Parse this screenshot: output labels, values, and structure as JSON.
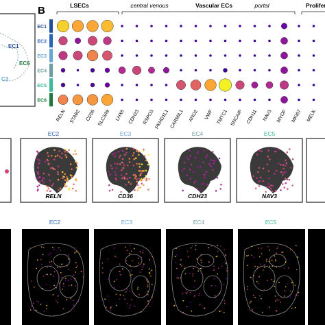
{
  "panel_letter": "B",
  "clusters": [
    {
      "name": "EC1",
      "color": "#1f4e9a"
    },
    {
      "name": "EC2",
      "color": "#2a66b8"
    },
    {
      "name": "EC3",
      "color": "#6aa5d6"
    },
    {
      "name": "EC4",
      "color": "#6f9ea0"
    },
    {
      "name": "EC5",
      "color": "#3fb89b"
    },
    {
      "name": "EC6",
      "color": "#1d7a3e"
    }
  ],
  "umap_left_labels": [
    "EC1",
    "EC6",
    "C3"
  ],
  "groups": [
    {
      "label": "LSECs",
      "bold": true
    },
    {
      "label": "central venous",
      "bold": false
    },
    {
      "label": "Vascular ECs",
      "bold": true
    },
    {
      "label": "portal",
      "bold": false
    },
    {
      "label": "Prolifera",
      "bold": true
    }
  ],
  "genes": [
    "RELN",
    "STAB2",
    "CD36",
    "SLC3A9",
    "LHX6",
    "CDH23",
    "RSPO3",
    "PKHD1L1",
    "CARMIL1",
    "ANO2",
    "VWF",
    "TMTC1",
    "SNCAIP",
    "CDH11",
    "NAV3",
    "MYOF",
    "MKI67",
    "MELK"
  ],
  "chart_data": {
    "type": "dotplot",
    "rows": [
      "EC1",
      "EC2",
      "EC3",
      "EC4",
      "EC5",
      "EC6"
    ],
    "columns": [
      "RELN",
      "STAB2",
      "CD36",
      "SLC3A9",
      "LHX6",
      "CDH23",
      "RSPO3",
      "PKHD1L1",
      "CARMIL1",
      "ANO2",
      "VWF",
      "TMTC1",
      "SNCAIP",
      "CDH11",
      "NAV3",
      "MYOF",
      "MKI67",
      "MELK"
    ],
    "size_pct": [
      [
        85,
        80,
        80,
        85,
        10,
        10,
        10,
        10,
        10,
        10,
        10,
        10,
        10,
        10,
        10,
        30,
        10,
        10
      ],
      [
        55,
        30,
        60,
        50,
        10,
        10,
        10,
        10,
        10,
        10,
        10,
        10,
        10,
        10,
        10,
        40,
        10,
        10
      ],
      [
        55,
        60,
        75,
        65,
        10,
        10,
        10,
        10,
        10,
        10,
        10,
        10,
        10,
        10,
        10,
        40,
        10,
        10
      ],
      [
        15,
        10,
        15,
        20,
        40,
        55,
        35,
        30,
        10,
        10,
        10,
        15,
        10,
        10,
        10,
        40,
        10,
        10
      ],
      [
        15,
        10,
        15,
        20,
        10,
        10,
        10,
        10,
        60,
        70,
        80,
        90,
        55,
        35,
        40,
        55,
        10,
        10
      ],
      [
        65,
        70,
        75,
        80,
        10,
        10,
        10,
        10,
        10,
        10,
        10,
        10,
        10,
        10,
        10,
        40,
        10,
        10
      ]
    ],
    "expr": [
      [
        0.9,
        0.8,
        0.8,
        0.85,
        0.1,
        0.1,
        0.1,
        0.1,
        0.1,
        0.1,
        0.1,
        0.1,
        0.1,
        0.1,
        0.1,
        0.2,
        0.1,
        0.1
      ],
      [
        0.5,
        0.3,
        0.5,
        0.45,
        0.1,
        0.1,
        0.1,
        0.1,
        0.1,
        0.1,
        0.1,
        0.1,
        0.1,
        0.1,
        0.1,
        0.3,
        0.1,
        0.1
      ],
      [
        0.45,
        0.5,
        0.7,
        0.55,
        0.1,
        0.1,
        0.1,
        0.1,
        0.1,
        0.1,
        0.1,
        0.1,
        0.1,
        0.1,
        0.1,
        0.3,
        0.1,
        0.1
      ],
      [
        0.15,
        0.1,
        0.15,
        0.2,
        0.4,
        0.5,
        0.4,
        0.3,
        0.1,
        0.1,
        0.1,
        0.1,
        0.1,
        0.1,
        0.1,
        0.3,
        0.1,
        0.1
      ],
      [
        0.15,
        0.1,
        0.15,
        0.2,
        0.1,
        0.1,
        0.1,
        0.1,
        0.55,
        0.6,
        0.8,
        0.98,
        0.5,
        0.35,
        0.4,
        0.45,
        0.1,
        0.1
      ],
      [
        0.7,
        0.75,
        0.75,
        0.8,
        0.1,
        0.1,
        0.1,
        0.1,
        0.1,
        0.1,
        0.1,
        0.1,
        0.1,
        0.1,
        0.1,
        0.3,
        0.1,
        0.1
      ]
    ]
  },
  "umap_panels": [
    {
      "title": "EC2",
      "title_color": "#2a66b8",
      "gene": "RELN",
      "level": 0.75
    },
    {
      "title": "EC3",
      "title_color": "#6aa5d6",
      "gene": "CD36",
      "level": 0.7
    },
    {
      "title": "EC4",
      "title_color": "#6f9ea0",
      "gene": "CDH23",
      "level": 0.15
    },
    {
      "title": "EC5",
      "title_color": "#3fb89b",
      "gene": "NAV3",
      "level": 0.3
    }
  ],
  "spatial_titles": [
    {
      "title": "EC2",
      "title_color": "#2a66b8"
    },
    {
      "title": "EC3",
      "title_color": "#6aa5d6"
    },
    {
      "title": "EC4",
      "title_color": "#6f9ea0"
    },
    {
      "title": "EC5",
      "title_color": "#3fb89b"
    }
  ]
}
